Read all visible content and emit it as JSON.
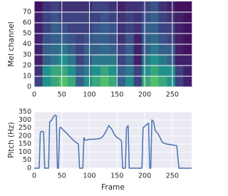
{
  "chart_data": [
    {
      "type": "heatmap",
      "y_label": "Mel channel",
      "colormap": "viridis",
      "grid": true,
      "xlim": [
        0,
        285
      ],
      "ylim": [
        0,
        80
      ],
      "xticks": [
        0,
        50,
        100,
        150,
        200,
        250
      ],
      "yticks": [
        0,
        10,
        20,
        30,
        40,
        50,
        60,
        70
      ],
      "z": [
        [
          0.2,
          0.5,
          0.6,
          0.7,
          0.6,
          0.3,
          0.5,
          0.6,
          0.7,
          0.6,
          0.3,
          0.5,
          0.2,
          0.6,
          0.7,
          0.6,
          0.5,
          0.2,
          0.1
        ],
        [
          0.15,
          0.5,
          0.6,
          0.6,
          0.5,
          0.3,
          0.4,
          0.5,
          0.6,
          0.5,
          0.3,
          0.4,
          0.2,
          0.5,
          0.6,
          0.5,
          0.5,
          0.2,
          0.1
        ],
        [
          0.1,
          0.3,
          0.4,
          0.5,
          0.4,
          0.2,
          0.3,
          0.4,
          0.4,
          0.4,
          0.2,
          0.3,
          0.1,
          0.4,
          0.5,
          0.4,
          0.3,
          0.1,
          0.1
        ],
        [
          0.1,
          0.3,
          0.35,
          0.4,
          0.3,
          0.2,
          0.3,
          0.3,
          0.35,
          0.3,
          0.2,
          0.3,
          0.1,
          0.3,
          0.4,
          0.3,
          0.3,
          0.1,
          0.05
        ],
        [
          0.1,
          0.25,
          0.3,
          0.3,
          0.25,
          0.2,
          0.25,
          0.3,
          0.3,
          0.25,
          0.15,
          0.25,
          0.1,
          0.3,
          0.35,
          0.25,
          0.2,
          0.1,
          0.05
        ],
        [
          0.1,
          0.2,
          0.3,
          0.25,
          0.2,
          0.2,
          0.2,
          0.25,
          0.3,
          0.25,
          0.15,
          0.2,
          0.15,
          0.3,
          0.3,
          0.2,
          0.2,
          0.1,
          0.05
        ],
        [
          0.1,
          0.2,
          0.25,
          0.2,
          0.2,
          0.2,
          0.2,
          0.2,
          0.25,
          0.2,
          0.15,
          0.2,
          0.15,
          0.25,
          0.3,
          0.2,
          0.15,
          0.1,
          0.05
        ],
        [
          0.05,
          0.15,
          0.2,
          0.15,
          0.15,
          0.15,
          0.15,
          0.2,
          0.2,
          0.15,
          0.1,
          0.15,
          0.15,
          0.2,
          0.25,
          0.15,
          0.1,
          0.05,
          0.05
        ]
      ]
    },
    {
      "type": "line",
      "x_label": "Frame",
      "y_label": "Pitch (Hz)",
      "color": "#4c72b0",
      "grid": true,
      "xlim": [
        0,
        285
      ],
      "ylim": [
        0,
        350
      ],
      "xticks": [
        0,
        50,
        100,
        150,
        200,
        250
      ],
      "yticks": [
        0,
        50,
        100,
        150,
        200,
        250,
        300,
        350
      ],
      "x": [
        0,
        9,
        11,
        13,
        17,
        19,
        26,
        28,
        31,
        35,
        38,
        40,
        42,
        44,
        46,
        48,
        52,
        58,
        65,
        72,
        78,
        80,
        82,
        88,
        90,
        92,
        95,
        100,
        110,
        120,
        125,
        130,
        135,
        140,
        145,
        150,
        155,
        158,
        160,
        165,
        167,
        170,
        172,
        195,
        197,
        203,
        207,
        209,
        211,
        213,
        216,
        219,
        225,
        232,
        240,
        250,
        258,
        262,
        285
      ],
      "values": [
        0,
        0,
        220,
        230,
        225,
        0,
        0,
        290,
        295,
        320,
        330,
        325,
        0,
        0,
        250,
        255,
        240,
        220,
        195,
        170,
        155,
        150,
        0,
        0,
        190,
        175,
        175,
        180,
        180,
        185,
        200,
        230,
        265,
        245,
        210,
        190,
        180,
        170,
        0,
        0,
        250,
        265,
        0,
        0,
        250,
        270,
        280,
        0,
        0,
        300,
        290,
        235,
        210,
        160,
        150,
        145,
        140,
        0,
        0
      ]
    }
  ]
}
